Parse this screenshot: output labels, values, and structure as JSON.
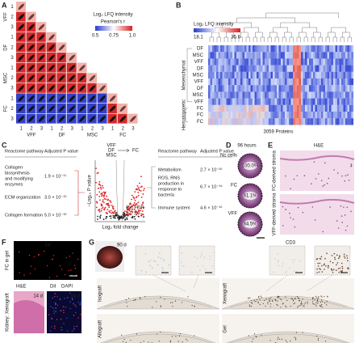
{
  "panel_a": {
    "label": "A",
    "legend_title": "Log₂ LFQ intensity",
    "scale_title": "Pearson's r",
    "scale_ticks": [
      "0.5",
      "0.75",
      "1.0"
    ],
    "groups": [
      "VFF",
      "DF",
      "MSC",
      "FC"
    ],
    "replicates": [
      "1",
      "2",
      "3"
    ]
  },
  "panel_b": {
    "label": "B",
    "legend_title": "Log₂ LFQ intensity",
    "scale_ticks": [
      "18.1",
      "35.6"
    ],
    "rows": [
      "DF",
      "MSC",
      "VFF",
      "DF",
      "MSC",
      "VFF",
      "DF",
      "MSC",
      "VFF",
      "FC",
      "FC",
      "FC"
    ],
    "row_groups": [
      "Mesenchymal",
      "Hematopoietic"
    ],
    "caption": "3059 Proteins"
  },
  "panel_c": {
    "label": "C",
    "left_table": {
      "header": [
        "Reactome pathway",
        "Adjusted P value"
      ],
      "rows": [
        [
          "Collagen biosynthesis and modifying enzymes",
          "1.9 × 10⁻¹¹"
        ],
        [
          "ECM organization",
          "3.0 × 10⁻¹⁰"
        ],
        [
          "Collagen formation",
          "5.0 × 10⁻¹⁰"
        ]
      ]
    },
    "volcano": {
      "left_labels": [
        "VFF",
        "DF",
        "MSC"
      ],
      "right_label": "FC",
      "y_label": "−Log₁₀ P value",
      "x_label": "Log₂ fold change",
      "annotations": [
        "1% FDR",
        "1.0 S0"
      ]
    },
    "right_table": {
      "header": [
        "Reactome pathway",
        "Adjusted P value"
      ],
      "rows": [
        [
          "Metabolism",
          "2.7 × 10⁻²⁶"
        ],
        [
          "ROS, RNS production in response to bacteria",
          "6.7 × 10⁻¹⁹"
        ],
        [
          "Immune system",
          "4.6 × 10⁻¹⁶"
        ]
      ]
    }
  },
  "panel_d": {
    "label": "D",
    "title": "96 hours",
    "items": [
      {
        "name": "Nc cells",
        "value": "100.0%"
      },
      {
        "name": "FC",
        "value": "81.1%"
      },
      {
        "name": "VFF",
        "value": "84.5%"
      }
    ]
  },
  "panel_e": {
    "label": "E",
    "title": "H&E",
    "images": [
      "FC-derived stroma",
      "VFF-derived stroma"
    ]
  },
  "panel_f": {
    "label": "F",
    "top_stain": "DiI",
    "top_label": "FC in gel",
    "bottom_label": "Kidney: Xenograft",
    "he": "H&E",
    "dil": "DiI",
    "dapi": "DAPI",
    "days": "14 d"
  },
  "panel_g": {
    "label": "G",
    "photo_label": "90 d",
    "stain": "CD3",
    "panels": [
      "Isograft",
      "Xenograft",
      "Allograft",
      "Gel"
    ]
  }
}
